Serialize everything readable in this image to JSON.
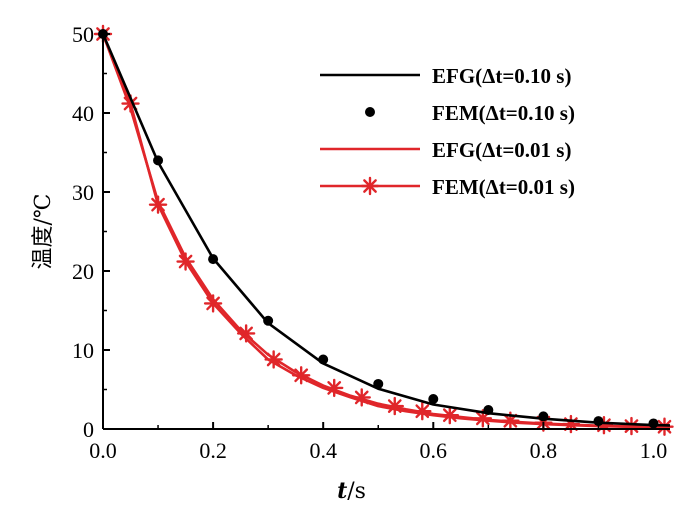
{
  "chart_data": {
    "type": "line",
    "title": "",
    "xlabel_italic": "t",
    "xlabel_unit": "/s",
    "ylabel": "温度/℃",
    "xlim": [
      0.0,
      1.03
    ],
    "ylim": [
      0,
      50
    ],
    "x_ticks": [
      0.0,
      0.2,
      0.4,
      0.6,
      0.8,
      1.0
    ],
    "x_tick_labels": [
      "0.0",
      "0.2",
      "0.4",
      "0.6",
      "0.8",
      "1.0"
    ],
    "y_ticks": [
      0,
      10,
      20,
      30,
      40,
      50
    ],
    "y_tick_labels": [
      "0",
      "10",
      "20",
      "30",
      "40",
      "50"
    ],
    "legend_position": "top-right",
    "series": [
      {
        "name": "EFG(Δt=0.10 s)",
        "style": "line",
        "color": "#000000",
        "x": [
          0.0,
          0.1,
          0.2,
          0.3,
          0.4,
          0.5,
          0.6,
          0.7,
          0.8,
          0.9,
          1.0,
          1.03
        ],
        "y": [
          50.0,
          33.8,
          21.6,
          13.4,
          8.3,
          5.1,
          3.1,
          2.0,
          1.3,
          0.8,
          0.5,
          0.45
        ]
      },
      {
        "name": "FEM(Δt=0.10 s)",
        "style": "markers-dot",
        "color": "#000000",
        "x": [
          0.0,
          0.1,
          0.2,
          0.3,
          0.4,
          0.5,
          0.6,
          0.7,
          0.8,
          0.9,
          1.0
        ],
        "y": [
          50.0,
          34.0,
          21.5,
          13.7,
          8.8,
          5.7,
          3.8,
          2.4,
          1.6,
          1.0,
          0.7
        ]
      },
      {
        "name": "EFG(Δt=0.01 s)",
        "style": "line",
        "color": "#e0262a",
        "x": [
          0.0,
          0.05,
          0.1,
          0.15,
          0.2,
          0.25,
          0.3,
          0.35,
          0.4,
          0.45,
          0.5,
          0.55,
          0.6,
          0.65,
          0.7,
          0.75,
          0.8,
          0.85,
          0.9,
          0.95,
          1.0,
          1.03
        ],
        "y": [
          50.0,
          40.6,
          28.8,
          21.7,
          16.4,
          12.5,
          9.4,
          7.2,
          5.5,
          4.2,
          3.2,
          2.5,
          1.9,
          1.5,
          1.15,
          0.9,
          0.7,
          0.55,
          0.42,
          0.33,
          0.26,
          0.22
        ]
      },
      {
        "name": "FEM(Δt=0.01 s)",
        "style": "line-asterisk",
        "color": "#e0262a",
        "x": [
          0.0,
          0.05,
          0.1,
          0.15,
          0.2,
          0.25,
          0.3,
          0.35,
          0.4,
          0.45,
          0.5,
          0.55,
          0.6,
          0.65,
          0.7,
          0.75,
          0.8,
          0.85,
          0.9,
          0.95,
          1.0,
          1.03
        ],
        "y": [
          50.0,
          41.2,
          28.4,
          21.2,
          15.9,
          12.1,
          8.8,
          6.8,
          5.2,
          4.0,
          2.9,
          2.25,
          1.75,
          1.35,
          1.05,
          0.8,
          0.62,
          0.48,
          0.37,
          0.29,
          0.22,
          0.2
        ],
        "marker_x": [
          0.0,
          0.05,
          0.1,
          0.15,
          0.2,
          0.26,
          0.31,
          0.36,
          0.42,
          0.47,
          0.53,
          0.58,
          0.63,
          0.69,
          0.74,
          0.8,
          0.85,
          0.91,
          0.96,
          1.02
        ],
        "marker_y": [
          50.0,
          41.2,
          28.4,
          21.2,
          15.9,
          12.1,
          8.8,
          6.8,
          5.2,
          4.0,
          2.9,
          2.25,
          1.75,
          1.35,
          1.05,
          0.8,
          0.62,
          0.48,
          0.37,
          0.29
        ]
      }
    ]
  }
}
